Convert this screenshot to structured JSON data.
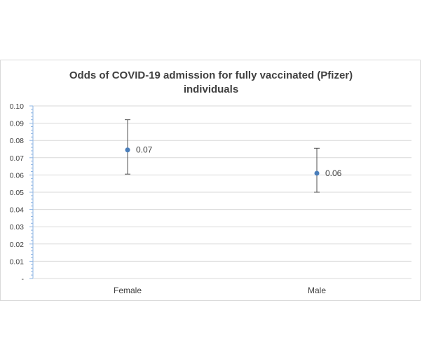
{
  "chart_data": {
    "type": "scatter",
    "title_lines": [
      "Odds of COVID-19 admission for fully vaccinated (Pfizer)",
      "individuals"
    ],
    "categories": [
      "Female",
      "Male"
    ],
    "values": [
      0.0745,
      0.061
    ],
    "data_labels": [
      "0.07",
      "0.06"
    ],
    "error_upper": [
      0.092,
      0.0755
    ],
    "error_lower": [
      0.0605,
      0.05
    ],
    "ylim": [
      0,
      0.1
    ],
    "yticks": [
      "-",
      "0.01",
      "0.02",
      "0.03",
      "0.04",
      "0.05",
      "0.06",
      "0.07",
      "0.08",
      "0.09",
      "0.10"
    ],
    "grid": true,
    "legend": "none",
    "colors": {
      "marker": "#4a7ebb",
      "error_bar": "#404040",
      "grid": "#d9d9d9",
      "axis": "#8eb4e3",
      "text": "#404040"
    }
  }
}
